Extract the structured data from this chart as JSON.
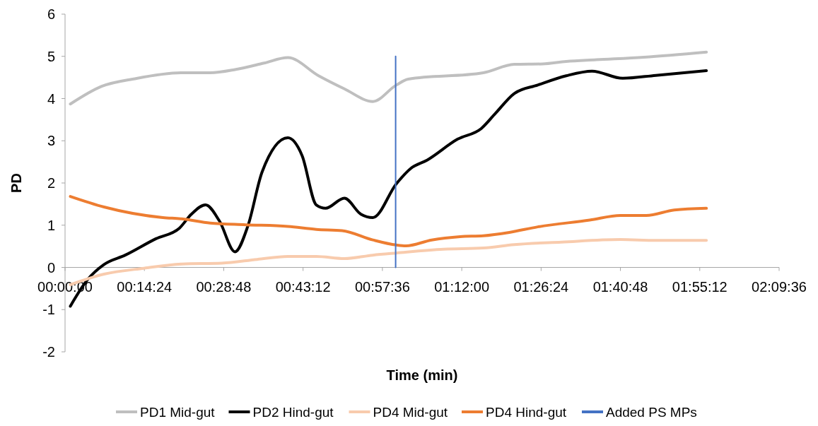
{
  "chart_data": {
    "type": "line",
    "xlabel": "Time (min)",
    "ylabel": "PD",
    "xlim": [
      0,
      2.16
    ],
    "ylim": [
      -2,
      6
    ],
    "xticks": [
      {
        "value": 0,
        "label": "00:00:00"
      },
      {
        "value": 0.24,
        "label": "00:14:24"
      },
      {
        "value": 0.48,
        "label": "00:28:48"
      },
      {
        "value": 0.72,
        "label": "00:43:12"
      },
      {
        "value": 0.96,
        "label": "00:57:36"
      },
      {
        "value": 1.2,
        "label": "01:12:00"
      },
      {
        "value": 1.44,
        "label": "01:26:24"
      },
      {
        "value": 1.68,
        "label": "01:40:48"
      },
      {
        "value": 1.92,
        "label": "01:55:12"
      },
      {
        "value": 2.16,
        "label": "02:09:36"
      }
    ],
    "yticks": [
      -2,
      -1,
      0,
      1,
      2,
      3,
      4,
      5,
      6
    ],
    "grid": false,
    "legend": "bottom",
    "series": [
      {
        "name": "PD1 Mid-gut",
        "color": "#bfbfbf",
        "x": [
          0.016,
          0.111,
          0.211,
          0.353,
          0.439,
          0.517,
          0.602,
          0.674,
          0.767,
          0.845,
          0.931,
          1.002,
          1.038,
          1.265,
          1.359,
          1.444,
          1.516,
          1.607,
          1.751,
          1.94
        ],
        "values": [
          3.87,
          4.29,
          4.47,
          4.61,
          4.61,
          4.69,
          4.84,
          4.97,
          4.54,
          4.23,
          3.93,
          4.32,
          4.46,
          4.61,
          4.81,
          4.82,
          4.88,
          4.92,
          4.98,
          5.1
        ]
      },
      {
        "name": "PD2 Hind-gut",
        "color": "#000000",
        "x": [
          0.016,
          0.068,
          0.118,
          0.182,
          0.275,
          0.346,
          0.382,
          0.425,
          0.467,
          0.514,
          0.553,
          0.596,
          0.674,
          0.717,
          0.76,
          0.788,
          0.845,
          0.895,
          0.931,
          1.002,
          1.045,
          1.095,
          1.188,
          1.259,
          1.302,
          1.359,
          1.43,
          1.516,
          1.594,
          1.687,
          1.787,
          1.94
        ],
        "values": [
          -0.92,
          -0.29,
          0.07,
          0.29,
          0.68,
          0.93,
          1.26,
          1.48,
          1.1,
          0.37,
          0.98,
          2.26,
          3.07,
          2.65,
          1.48,
          1.4,
          1.64,
          1.26,
          1.18,
          1.98,
          2.34,
          2.54,
          3.04,
          3.29,
          3.65,
          4.12,
          4.32,
          4.54,
          4.65,
          4.48,
          4.55,
          4.66
        ]
      },
      {
        "name": "PD4 Mid-gut",
        "color": "#f8cbad",
        "x": [
          0.016,
          0.118,
          0.239,
          0.353,
          0.474,
          0.581,
          0.674,
          0.76,
          0.845,
          0.931,
          1.002,
          1.145,
          1.265,
          1.359,
          1.501,
          1.68,
          1.787,
          1.94
        ],
        "values": [
          -0.41,
          -0.16,
          -0.02,
          0.08,
          0.1,
          0.19,
          0.26,
          0.26,
          0.21,
          0.29,
          0.34,
          0.43,
          0.46,
          0.54,
          0.6,
          0.66,
          0.64,
          0.64
        ]
      },
      {
        "name": "PD4 Hind-gut",
        "color": "#ed7d31",
        "x": [
          0.016,
          0.118,
          0.296,
          0.353,
          0.439,
          0.546,
          0.674,
          0.76,
          0.838,
          0.931,
          1.002,
          1.031,
          1.109,
          1.195,
          1.265,
          1.344,
          1.43,
          1.587,
          1.68,
          1.758,
          1.843,
          1.94
        ],
        "values": [
          1.68,
          1.43,
          1.18,
          1.15,
          1.05,
          1.01,
          0.97,
          0.9,
          0.87,
          0.65,
          0.53,
          0.51,
          0.65,
          0.73,
          0.75,
          0.83,
          0.96,
          1.12,
          1.23,
          1.23,
          1.36,
          1.4
        ]
      },
      {
        "name": "Added PS MPs",
        "color": "#4472c4",
        "x": [
          1.0,
          1.0
        ],
        "values": [
          0,
          5
        ]
      }
    ]
  }
}
